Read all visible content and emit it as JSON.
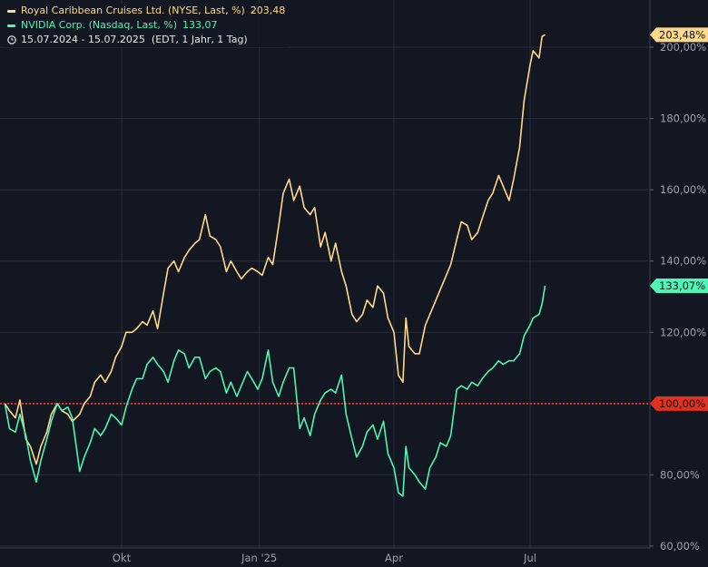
{
  "legend": {
    "series1": {
      "name": "Royal Caribbean Cruises Ltd. (NYSE, Last, %)",
      "value": "203,48"
    },
    "series2": {
      "name": "NVIDIA Corp. (Nasdaq, Last, %)",
      "value": "133,07"
    },
    "range": "15.07.2024 - 15.07.2025  (EDT, 1 Jahr, 1 Tag)"
  },
  "colors": {
    "background": "#131722",
    "grid": "#2a2e39",
    "rcl": "#ffd98a",
    "nvda": "#4ef5b6",
    "baseline": "#e0301e",
    "axis_text": "#9aa0ab"
  },
  "icons": {
    "range": "clock-icon"
  },
  "chart_data": {
    "type": "line",
    "x_ticks": [
      "Okt",
      "Jan '25",
      "Apr",
      "Jul"
    ],
    "y_ticks": [
      "200,00%",
      "180,00%",
      "160,00%",
      "140,00%",
      "120,00%",
      "100,00%",
      "80,00%",
      "60,00%"
    ],
    "ylim": [
      60,
      210
    ],
    "xlim": [
      "2024-07-15",
      "2025-08-31"
    ],
    "y_unit": "%",
    "reference_line": {
      "value": 100,
      "label": "100,00%",
      "style": "dotted"
    },
    "grid": true,
    "legend_position": "top-left",
    "series": [
      {
        "name": "Royal Caribbean Cruises Ltd. (NYSE, Last, %)",
        "last_label": "203,48%",
        "points": [
          [
            "2024-07-15",
            100
          ],
          [
            "2024-07-18",
            98
          ],
          [
            "2024-07-22",
            96
          ],
          [
            "2024-07-25",
            101
          ],
          [
            "2024-07-29",
            90
          ],
          [
            "2024-08-01",
            88
          ],
          [
            "2024-08-05",
            83
          ],
          [
            "2024-08-08",
            88
          ],
          [
            "2024-08-12",
            92
          ],
          [
            "2024-08-15",
            97
          ],
          [
            "2024-08-19",
            100
          ],
          [
            "2024-08-22",
            98
          ],
          [
            "2024-08-26",
            97
          ],
          [
            "2024-08-29",
            95
          ],
          [
            "2024-09-03",
            97
          ],
          [
            "2024-09-06",
            100
          ],
          [
            "2024-09-10",
            102
          ],
          [
            "2024-09-13",
            106
          ],
          [
            "2024-09-17",
            108
          ],
          [
            "2024-09-20",
            106
          ],
          [
            "2024-09-24",
            109
          ],
          [
            "2024-09-27",
            113
          ],
          [
            "2024-10-01",
            116
          ],
          [
            "2024-10-04",
            120
          ],
          [
            "2024-10-08",
            120
          ],
          [
            "2024-10-11",
            121
          ],
          [
            "2024-10-15",
            123
          ],
          [
            "2024-10-18",
            122
          ],
          [
            "2024-10-22",
            126
          ],
          [
            "2024-10-25",
            121
          ],
          [
            "2024-10-29",
            131
          ],
          [
            "2024-11-01",
            138
          ],
          [
            "2024-11-05",
            140
          ],
          [
            "2024-11-08",
            137
          ],
          [
            "2024-11-12",
            141
          ],
          [
            "2024-11-15",
            143
          ],
          [
            "2024-11-19",
            145
          ],
          [
            "2024-11-22",
            146
          ],
          [
            "2024-11-26",
            153
          ],
          [
            "2024-11-29",
            147
          ],
          [
            "2024-12-03",
            146
          ],
          [
            "2024-12-06",
            144
          ],
          [
            "2024-12-10",
            137
          ],
          [
            "2024-12-13",
            140
          ],
          [
            "2024-12-17",
            137
          ],
          [
            "2024-12-20",
            135
          ],
          [
            "2024-12-24",
            137
          ],
          [
            "2024-12-27",
            138
          ],
          [
            "2024-12-31",
            137
          ],
          [
            "2025-01-03",
            136
          ],
          [
            "2025-01-07",
            141
          ],
          [
            "2025-01-10",
            139
          ],
          [
            "2025-01-14",
            150
          ],
          [
            "2025-01-17",
            159
          ],
          [
            "2025-01-21",
            163
          ],
          [
            "2025-01-24",
            157
          ],
          [
            "2025-01-28",
            161
          ],
          [
            "2025-01-31",
            155
          ],
          [
            "2025-02-04",
            153
          ],
          [
            "2025-02-07",
            155
          ],
          [
            "2025-02-11",
            144
          ],
          [
            "2025-02-14",
            148
          ],
          [
            "2025-02-18",
            140
          ],
          [
            "2025-02-21",
            145
          ],
          [
            "2025-02-25",
            137
          ],
          [
            "2025-02-28",
            133
          ],
          [
            "2025-03-04",
            125
          ],
          [
            "2025-03-07",
            123
          ],
          [
            "2025-03-11",
            125
          ],
          [
            "2025-03-14",
            129
          ],
          [
            "2025-03-18",
            127
          ],
          [
            "2025-03-21",
            133
          ],
          [
            "2025-03-25",
            131
          ],
          [
            "2025-03-28",
            124
          ],
          [
            "2025-04-01",
            120
          ],
          [
            "2025-04-04",
            108
          ],
          [
            "2025-04-07",
            106
          ],
          [
            "2025-04-09",
            124
          ],
          [
            "2025-04-11",
            116
          ],
          [
            "2025-04-15",
            114
          ],
          [
            "2025-04-18",
            114
          ],
          [
            "2025-04-22",
            122
          ],
          [
            "2025-04-25",
            125
          ],
          [
            "2025-04-29",
            129
          ],
          [
            "2025-05-02",
            132
          ],
          [
            "2025-05-06",
            136
          ],
          [
            "2025-05-09",
            139
          ],
          [
            "2025-05-13",
            146
          ],
          [
            "2025-05-16",
            151
          ],
          [
            "2025-05-20",
            150
          ],
          [
            "2025-05-23",
            146
          ],
          [
            "2025-05-27",
            148
          ],
          [
            "2025-05-30",
            152
          ],
          [
            "2025-06-03",
            157
          ],
          [
            "2025-06-06",
            159
          ],
          [
            "2025-06-10",
            164
          ],
          [
            "2025-06-13",
            161
          ],
          [
            "2025-06-17",
            157
          ],
          [
            "2025-06-20",
            163
          ],
          [
            "2025-06-24",
            172
          ],
          [
            "2025-06-27",
            185
          ],
          [
            "2025-07-01",
            195
          ],
          [
            "2025-07-03",
            199
          ],
          [
            "2025-07-07",
            197
          ],
          [
            "2025-07-09",
            203
          ],
          [
            "2025-07-11",
            203.48
          ]
        ]
      },
      {
        "name": "NVIDIA Corp. (Nasdaq, Last, %)",
        "last_label": "133,07%",
        "points": [
          [
            "2024-07-15",
            100
          ],
          [
            "2024-07-18",
            93
          ],
          [
            "2024-07-22",
            92
          ],
          [
            "2024-07-25",
            97
          ],
          [
            "2024-07-29",
            91
          ],
          [
            "2024-08-01",
            84
          ],
          [
            "2024-08-05",
            78
          ],
          [
            "2024-08-08",
            84
          ],
          [
            "2024-08-12",
            90
          ],
          [
            "2024-08-15",
            95
          ],
          [
            "2024-08-19",
            100
          ],
          [
            "2024-08-22",
            98
          ],
          [
            "2024-08-26",
            99
          ],
          [
            "2024-08-29",
            96
          ],
          [
            "2024-09-03",
            81
          ],
          [
            "2024-09-06",
            85
          ],
          [
            "2024-09-10",
            89
          ],
          [
            "2024-09-13",
            93
          ],
          [
            "2024-09-17",
            91
          ],
          [
            "2024-09-20",
            93
          ],
          [
            "2024-09-24",
            97
          ],
          [
            "2024-09-27",
            96
          ],
          [
            "2024-10-01",
            94
          ],
          [
            "2024-10-04",
            99
          ],
          [
            "2024-10-08",
            104
          ],
          [
            "2024-10-11",
            107
          ],
          [
            "2024-10-15",
            107
          ],
          [
            "2024-10-18",
            111
          ],
          [
            "2024-10-22",
            113
          ],
          [
            "2024-10-25",
            111
          ],
          [
            "2024-10-29",
            109
          ],
          [
            "2024-11-01",
            106
          ],
          [
            "2024-11-05",
            112
          ],
          [
            "2024-11-08",
            115
          ],
          [
            "2024-11-12",
            114
          ],
          [
            "2024-11-15",
            110
          ],
          [
            "2024-11-19",
            113
          ],
          [
            "2024-11-22",
            113
          ],
          [
            "2024-11-26",
            107
          ],
          [
            "2024-11-29",
            109
          ],
          [
            "2024-12-03",
            110
          ],
          [
            "2024-12-06",
            109
          ],
          [
            "2024-12-10",
            103
          ],
          [
            "2024-12-13",
            106
          ],
          [
            "2024-12-17",
            102
          ],
          [
            "2024-12-20",
            105
          ],
          [
            "2024-12-24",
            109
          ],
          [
            "2024-12-27",
            107
          ],
          [
            "2024-12-31",
            104
          ],
          [
            "2025-01-03",
            107
          ],
          [
            "2025-01-07",
            115
          ],
          [
            "2025-01-10",
            106
          ],
          [
            "2025-01-14",
            102
          ],
          [
            "2025-01-17",
            106
          ],
          [
            "2025-01-21",
            110
          ],
          [
            "2025-01-24",
            110
          ],
          [
            "2025-01-28",
            93
          ],
          [
            "2025-01-31",
            96
          ],
          [
            "2025-02-04",
            91
          ],
          [
            "2025-02-07",
            97
          ],
          [
            "2025-02-11",
            101
          ],
          [
            "2025-02-14",
            103
          ],
          [
            "2025-02-18",
            104
          ],
          [
            "2025-02-21",
            103
          ],
          [
            "2025-02-25",
            108
          ],
          [
            "2025-02-28",
            97
          ],
          [
            "2025-03-04",
            90
          ],
          [
            "2025-03-07",
            85
          ],
          [
            "2025-03-11",
            88
          ],
          [
            "2025-03-14",
            92
          ],
          [
            "2025-03-18",
            94
          ],
          [
            "2025-03-21",
            90
          ],
          [
            "2025-03-25",
            95
          ],
          [
            "2025-03-28",
            86
          ],
          [
            "2025-04-01",
            82
          ],
          [
            "2025-04-04",
            75
          ],
          [
            "2025-04-07",
            74
          ],
          [
            "2025-04-09",
            88
          ],
          [
            "2025-04-11",
            82
          ],
          [
            "2025-04-15",
            80
          ],
          [
            "2025-04-18",
            78
          ],
          [
            "2025-04-22",
            76
          ],
          [
            "2025-04-25",
            82
          ],
          [
            "2025-04-29",
            85
          ],
          [
            "2025-05-02",
            89
          ],
          [
            "2025-05-06",
            88
          ],
          [
            "2025-05-09",
            91
          ],
          [
            "2025-05-13",
            104
          ],
          [
            "2025-05-16",
            105
          ],
          [
            "2025-05-20",
            104
          ],
          [
            "2025-05-23",
            106
          ],
          [
            "2025-05-27",
            105
          ],
          [
            "2025-05-30",
            107
          ],
          [
            "2025-06-03",
            109
          ],
          [
            "2025-06-06",
            110
          ],
          [
            "2025-06-10",
            112
          ],
          [
            "2025-06-13",
            111
          ],
          [
            "2025-06-17",
            112
          ],
          [
            "2025-06-20",
            112
          ],
          [
            "2025-06-24",
            114
          ],
          [
            "2025-06-27",
            119
          ],
          [
            "2025-07-01",
            122
          ],
          [
            "2025-07-03",
            124
          ],
          [
            "2025-07-07",
            125
          ],
          [
            "2025-07-09",
            128
          ],
          [
            "2025-07-11",
            133.07
          ]
        ]
      }
    ]
  }
}
